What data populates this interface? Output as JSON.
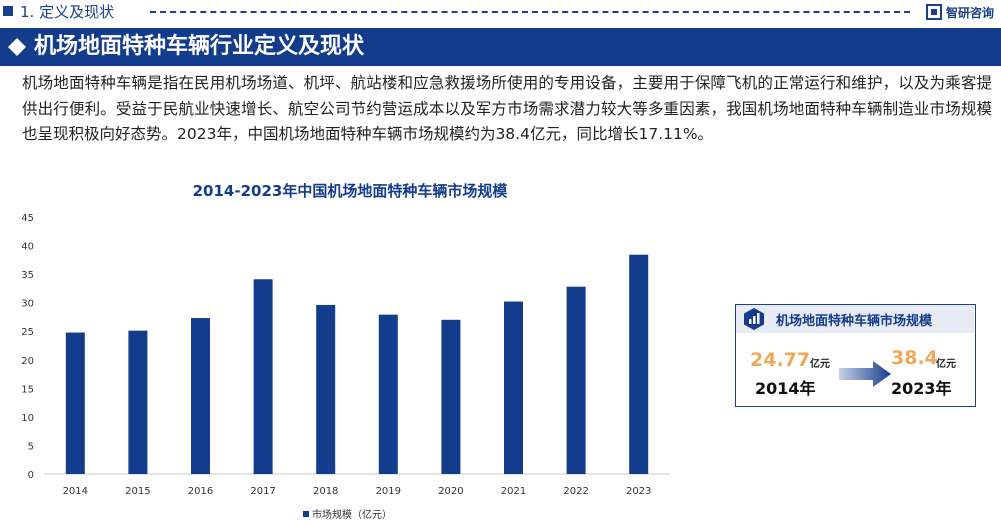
{
  "header": {
    "section": "1. 定义及现状",
    "brand": "智研咨询"
  },
  "banner": {
    "title": "机场地面特种车辆行业定义及现状"
  },
  "intro": {
    "text": "机场地面特种车辆是指在民用机场场道、机坪、航站楼和应急救援场所使用的专用设备，主要用于保障飞机的正常运行和维护，以及为乘客提供出行便利。受益于民航业快速增长、航空公司节约营运成本以及军方市场需求潜力较大等多重因素，我国机场地面特种车辆制造业市场规模也呈现积极向好态势。2023年，中国机场地面特种车辆市场规模约为38.4亿元，同比增长17.11%。"
  },
  "chart_data": {
    "type": "bar",
    "title": "2014-2023年中国机场地面特种车辆市场规模",
    "categories": [
      "2014",
      "2015",
      "2016",
      "2017",
      "2018",
      "2019",
      "2020",
      "2021",
      "2022",
      "2023"
    ],
    "series": [
      {
        "name": "市场规模（亿元）",
        "values": [
          24.77,
          25.1,
          27.3,
          34.1,
          29.6,
          27.9,
          27.0,
          30.2,
          32.8,
          38.4
        ]
      }
    ],
    "ylim": [
      0,
      45
    ],
    "yticks": [
      "0",
      "5",
      "10",
      "15",
      "20",
      "25",
      "30",
      "35",
      "40",
      "45"
    ],
    "xlabel": "",
    "ylabel": "",
    "legend": "bottom-center",
    "grid": false,
    "bar_color": "#143c8c"
  },
  "summary_card": {
    "title": "机场地面特种车辆市场规模",
    "from_value": "24.77",
    "from_unit": "亿元",
    "from_year": "2014年",
    "to_value": "38.4",
    "to_unit": "亿元",
    "to_year": "2023年"
  },
  "colors": {
    "primary": "#143c8c",
    "accent": "#f0a858"
  }
}
